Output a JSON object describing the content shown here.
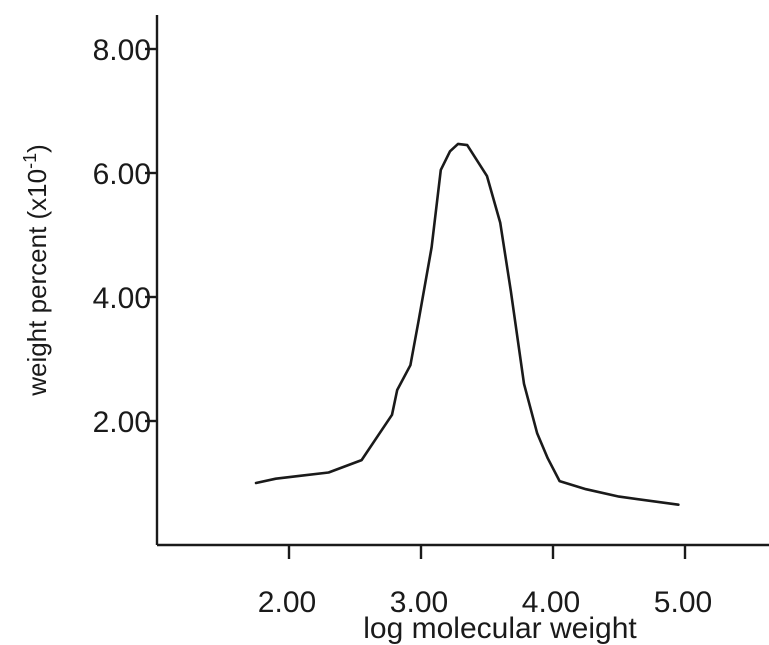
{
  "chart_data": {
    "type": "line",
    "title": "",
    "xlabel": "log molecular weight",
    "ylabel": "weight percent (x10",
    "ylabel_exponent": "-1",
    "ylabel_close": ")",
    "xlim": [
      1.0,
      5.0
    ],
    "ylim": [
      0.0,
      8.0
    ],
    "x_ticks": [
      {
        "value": 2.0,
        "label": "2.00"
      },
      {
        "value": 3.0,
        "label": "3.00"
      },
      {
        "value": 4.0,
        "label": "4.00"
      },
      {
        "value": 5.0,
        "label": "5.00"
      }
    ],
    "y_ticks": [
      {
        "value": 2.0,
        "label": "2.00"
      },
      {
        "value": 4.0,
        "label": "4.00"
      },
      {
        "value": 6.0,
        "label": "6.00"
      },
      {
        "value": 8.0,
        "label": "8.00"
      }
    ],
    "grid": false,
    "series": [
      {
        "x": [
          1.75,
          1.9,
          2.1,
          2.3,
          2.55,
          2.78,
          2.82,
          2.92,
          2.98,
          3.08,
          3.15,
          3.22,
          3.28,
          3.35,
          3.5,
          3.6,
          3.68,
          3.78,
          3.88,
          3.96,
          4.05,
          4.25,
          4.5,
          4.95
        ],
        "y": [
          1.0,
          1.07,
          1.12,
          1.17,
          1.37,
          2.1,
          2.5,
          2.9,
          3.6,
          4.8,
          6.05,
          6.35,
          6.47,
          6.45,
          5.95,
          5.2,
          4.1,
          2.6,
          1.8,
          1.4,
          1.03,
          0.9,
          0.78,
          0.65
        ]
      }
    ]
  }
}
